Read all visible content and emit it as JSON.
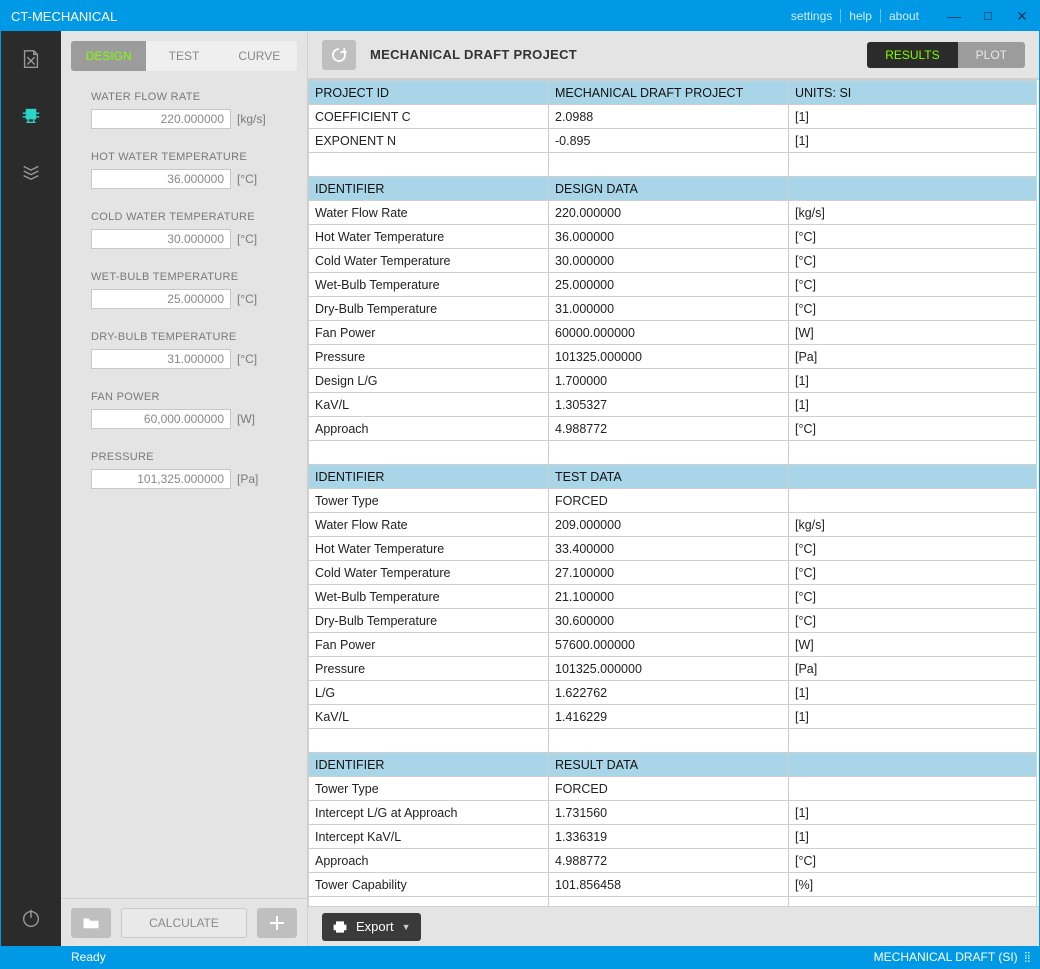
{
  "window": {
    "title": "CT-MECHANICAL"
  },
  "menu": {
    "settings": "settings",
    "help": "help",
    "about": "about"
  },
  "leftTabs": {
    "design": "DESIGN",
    "test": "TEST",
    "curve": "CURVE"
  },
  "fields": {
    "wfr": {
      "label": "WATER FLOW RATE",
      "value": "220.000000",
      "unit": "[kg/s]"
    },
    "hwt": {
      "label": "HOT WATER TEMPERATURE",
      "value": "36.000000",
      "unit": "[°C]"
    },
    "cwt": {
      "label": "COLD WATER TEMPERATURE",
      "value": "30.000000",
      "unit": "[°C]"
    },
    "wbt": {
      "label": "WET-BULB TEMPERATURE",
      "value": "25.000000",
      "unit": "[°C]"
    },
    "dbt": {
      "label": "DRY-BULB TEMPERATURE",
      "value": "31.000000",
      "unit": "[°C]"
    },
    "fp": {
      "label": "FAN POWER",
      "value": "60,000.000000",
      "unit": "[W]"
    },
    "pr": {
      "label": "PRESSURE",
      "value": "101,325.000000",
      "unit": "[Pa]"
    }
  },
  "actions": {
    "calculate": "CALCULATE",
    "export": "Export"
  },
  "toolbar": {
    "project": "MECHANICAL DRAFT PROJECT",
    "results": "RESULTS",
    "plot": "PLOT"
  },
  "table": {
    "sections": [
      {
        "header": [
          "PROJECT ID",
          "MECHANICAL DRAFT PROJECT",
          "UNITS: SI"
        ],
        "rows": [
          [
            "COEFFICIENT C",
            "2.0988",
            "[1]"
          ],
          [
            "EXPONENT N",
            "-0.895",
            "[1]"
          ]
        ]
      },
      {
        "header": [
          "IDENTIFIER",
          "DESIGN DATA",
          ""
        ],
        "rows": [
          [
            "Water Flow Rate",
            "220.000000",
            "[kg/s]"
          ],
          [
            "Hot Water Temperature",
            "36.000000",
            "[°C]"
          ],
          [
            "Cold Water Temperature",
            "30.000000",
            "[°C]"
          ],
          [
            "Wet-Bulb Temperature",
            "25.000000",
            "[°C]"
          ],
          [
            "Dry-Bulb Temperature",
            "31.000000",
            "[°C]"
          ],
          [
            "Fan Power",
            "60000.000000",
            "[W]"
          ],
          [
            "Pressure",
            "101325.000000",
            "[Pa]"
          ],
          [
            "Design L/G",
            "1.700000",
            "[1]"
          ],
          [
            "KaV/L",
            "1.305327",
            "[1]"
          ],
          [
            "Approach",
            "4.988772",
            "[°C]"
          ]
        ]
      },
      {
        "header": [
          "IDENTIFIER",
          "TEST DATA",
          ""
        ],
        "rows": [
          [
            "Tower Type",
            "FORCED",
            ""
          ],
          [
            "Water Flow Rate",
            "209.000000",
            "[kg/s]"
          ],
          [
            "Hot Water Temperature",
            "33.400000",
            "[°C]"
          ],
          [
            "Cold Water Temperature",
            "27.100000",
            "[°C]"
          ],
          [
            "Wet-Bulb Temperature",
            "21.100000",
            "[°C]"
          ],
          [
            "Dry-Bulb Temperature",
            "30.600000",
            "[°C]"
          ],
          [
            "Fan Power",
            "57600.000000",
            "[W]"
          ],
          [
            "Pressure",
            "101325.000000",
            "[Pa]"
          ],
          [
            "L/G",
            "1.622762",
            "[1]"
          ],
          [
            "KaV/L",
            "1.416229",
            "[1]"
          ]
        ]
      },
      {
        "header": [
          "IDENTIFIER",
          "RESULT DATA",
          ""
        ],
        "rows": [
          [
            "Tower Type",
            "FORCED",
            ""
          ],
          [
            "Intercept L/G at Approach",
            "1.731560",
            "[1]"
          ],
          [
            "Intercept KaV/L",
            "1.336319",
            "[1]"
          ],
          [
            "Approach",
            "4.988772",
            "[°C]"
          ],
          [
            "Tower Capability",
            "101.856458",
            "[%]"
          ]
        ]
      }
    ]
  },
  "status": {
    "ready": "Ready",
    "mode": "MECHANICAL DRAFT (SI)"
  },
  "colors": {
    "primary": "#0099e5",
    "darknav": "#2b2b2b",
    "panel": "#e4e4e4",
    "header_row": "#a9d5e9",
    "accent_green": "#7fff00",
    "teal": "#2ad4c9"
  }
}
